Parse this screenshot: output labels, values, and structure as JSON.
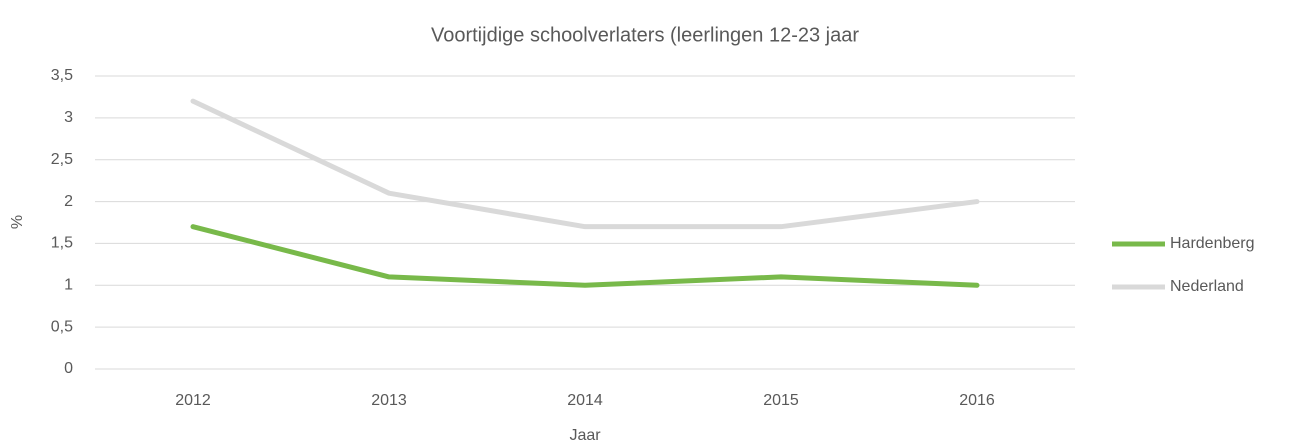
{
  "chart_data": {
    "type": "line",
    "title": "Voortijdige schoolverlaters (leerlingen 12-23 jaar",
    "x_label": "Jaar",
    "y_label": "%",
    "categories": [
      "2012",
      "2013",
      "2014",
      "2015",
      "2016"
    ],
    "series": [
      {
        "name": "Hardenberg",
        "color": "#78b94a",
        "values": [
          1.7,
          1.1,
          1.0,
          1.1,
          1.0
        ]
      },
      {
        "name": "Nederland",
        "color": "#d9d9d9",
        "values": [
          3.2,
          2.1,
          1.7,
          1.7,
          2.0
        ]
      }
    ],
    "ylim": [
      0,
      3.5
    ],
    "yticks": [
      0,
      {
        "value": 0.5,
        "label": "0,5"
      },
      1,
      {
        "value": 1.5,
        "label": "1,5"
      },
      2,
      {
        "value": 2.5,
        "label": "2,5"
      },
      3,
      {
        "value": 3.5,
        "label": "3,5"
      }
    ],
    "grid": true,
    "legend": "right"
  }
}
